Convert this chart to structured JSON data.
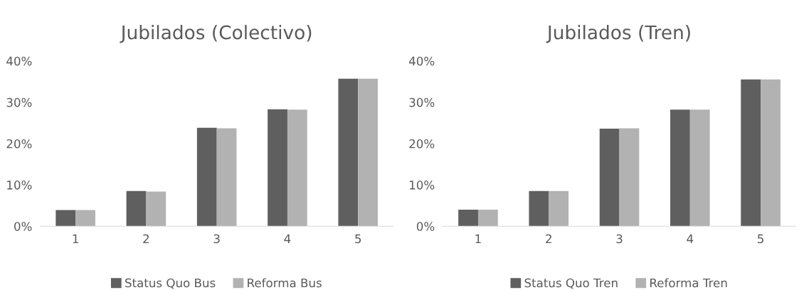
{
  "chart_data": [
    {
      "type": "bar",
      "title": "Jubilados (Colectivo)",
      "categories": [
        "1",
        "2",
        "3",
        "4",
        "5"
      ],
      "ylim": [
        0,
        0.4
      ],
      "yticks": [
        {
          "value": 0,
          "label": "0%"
        },
        {
          "value": 0.1,
          "label": "10%"
        },
        {
          "value": 0.2,
          "label": "20%"
        },
        {
          "value": 0.3,
          "label": "30%"
        },
        {
          "value": 0.4,
          "label": "40%"
        }
      ],
      "grid": false,
      "legend": "bottom",
      "series": [
        {
          "name": "Status Quo Bus",
          "color": "#5f5f5f",
          "values": [
            0.039,
            0.085,
            0.238,
            0.283,
            0.357
          ]
        },
        {
          "name": "Reforma Bus",
          "color": "#b2b2b2",
          "values": [
            0.039,
            0.084,
            0.237,
            0.282,
            0.357
          ]
        }
      ]
    },
    {
      "type": "bar",
      "title": "Jubilados (Tren)",
      "categories": [
        "1",
        "2",
        "3",
        "4",
        "5"
      ],
      "ylim": [
        0,
        0.4
      ],
      "yticks": [
        {
          "value": 0,
          "label": "0%"
        },
        {
          "value": 0.1,
          "label": "10%"
        },
        {
          "value": 0.2,
          "label": "20%"
        },
        {
          "value": 0.3,
          "label": "30%"
        },
        {
          "value": 0.4,
          "label": "40%"
        }
      ],
      "grid": false,
      "legend": "bottom",
      "series": [
        {
          "name": "Status Quo Tren",
          "color": "#5f5f5f",
          "values": [
            0.04,
            0.085,
            0.236,
            0.282,
            0.355
          ]
        },
        {
          "name": "Reforma Tren",
          "color": "#b2b2b2",
          "values": [
            0.04,
            0.085,
            0.237,
            0.282,
            0.355
          ]
        }
      ]
    }
  ]
}
